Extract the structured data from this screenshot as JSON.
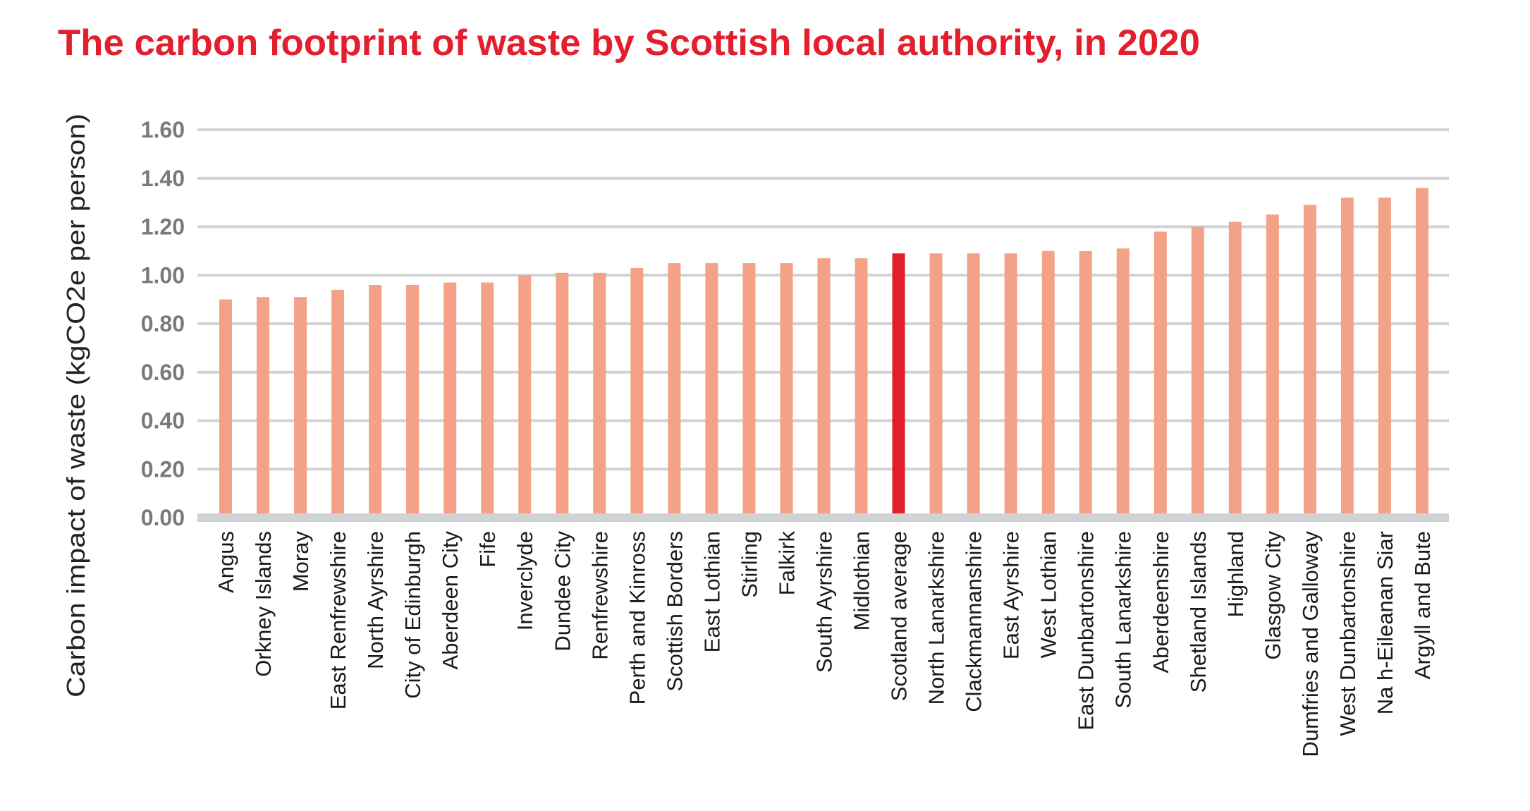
{
  "chart_data": {
    "type": "bar",
    "title": "The carbon footprint of waste by Scottish local authority, in 2020",
    "xlabel": "",
    "ylabel": "Carbon impact of waste (kgCO2e per person)",
    "ylim": [
      0,
      1.6
    ],
    "yticks": [
      "0.00",
      "0.20",
      "0.40",
      "0.60",
      "0.80",
      "1.00",
      "1.20",
      "1.40",
      "1.60"
    ],
    "grid": true,
    "legend": "none",
    "categories": [
      "Angus",
      "Orkney Islands",
      "Moray",
      "East Renfrewshire",
      "North Ayrshire",
      "City of Edinburgh",
      "Aberdeen City",
      "Fife",
      "Inverclyde",
      "Dundee City",
      "Renfrewshire",
      "Perth and Kinross",
      "Scottish Borders",
      "East Lothian",
      "Stirling",
      "Falkirk",
      "South Ayrshire",
      "Midlothian",
      "Scotland average",
      "North Lanarkshire",
      "Clackmannanshire",
      "East Ayrshire",
      "West Lothian",
      "East Dunbartonshire",
      "South Lanarkshire",
      "Aberdeenshire",
      "Shetland Islands",
      "Highland",
      "Glasgow City",
      "Dumfries and Galloway",
      "West Dunbartonshire",
      "Na h-Eileanan Siar",
      "Argyll and Bute"
    ],
    "values": [
      0.9,
      0.91,
      0.91,
      0.94,
      0.96,
      0.96,
      0.97,
      0.97,
      1.0,
      1.01,
      1.01,
      1.03,
      1.05,
      1.05,
      1.05,
      1.05,
      1.07,
      1.07,
      1.09,
      1.09,
      1.09,
      1.09,
      1.1,
      1.1,
      1.11,
      1.18,
      1.2,
      1.22,
      1.25,
      1.29,
      1.32,
      1.32,
      1.36
    ],
    "highlight": "Scotland average",
    "colors": {
      "title": "#E31E2D",
      "bar": "#F3A287",
      "highlight_bar": "#E31E28",
      "grid": "#D1D2D4",
      "axis": "#D1D2D4",
      "tick_label": "#7A7A7C",
      "category_label": "#1A1A1A"
    }
  }
}
